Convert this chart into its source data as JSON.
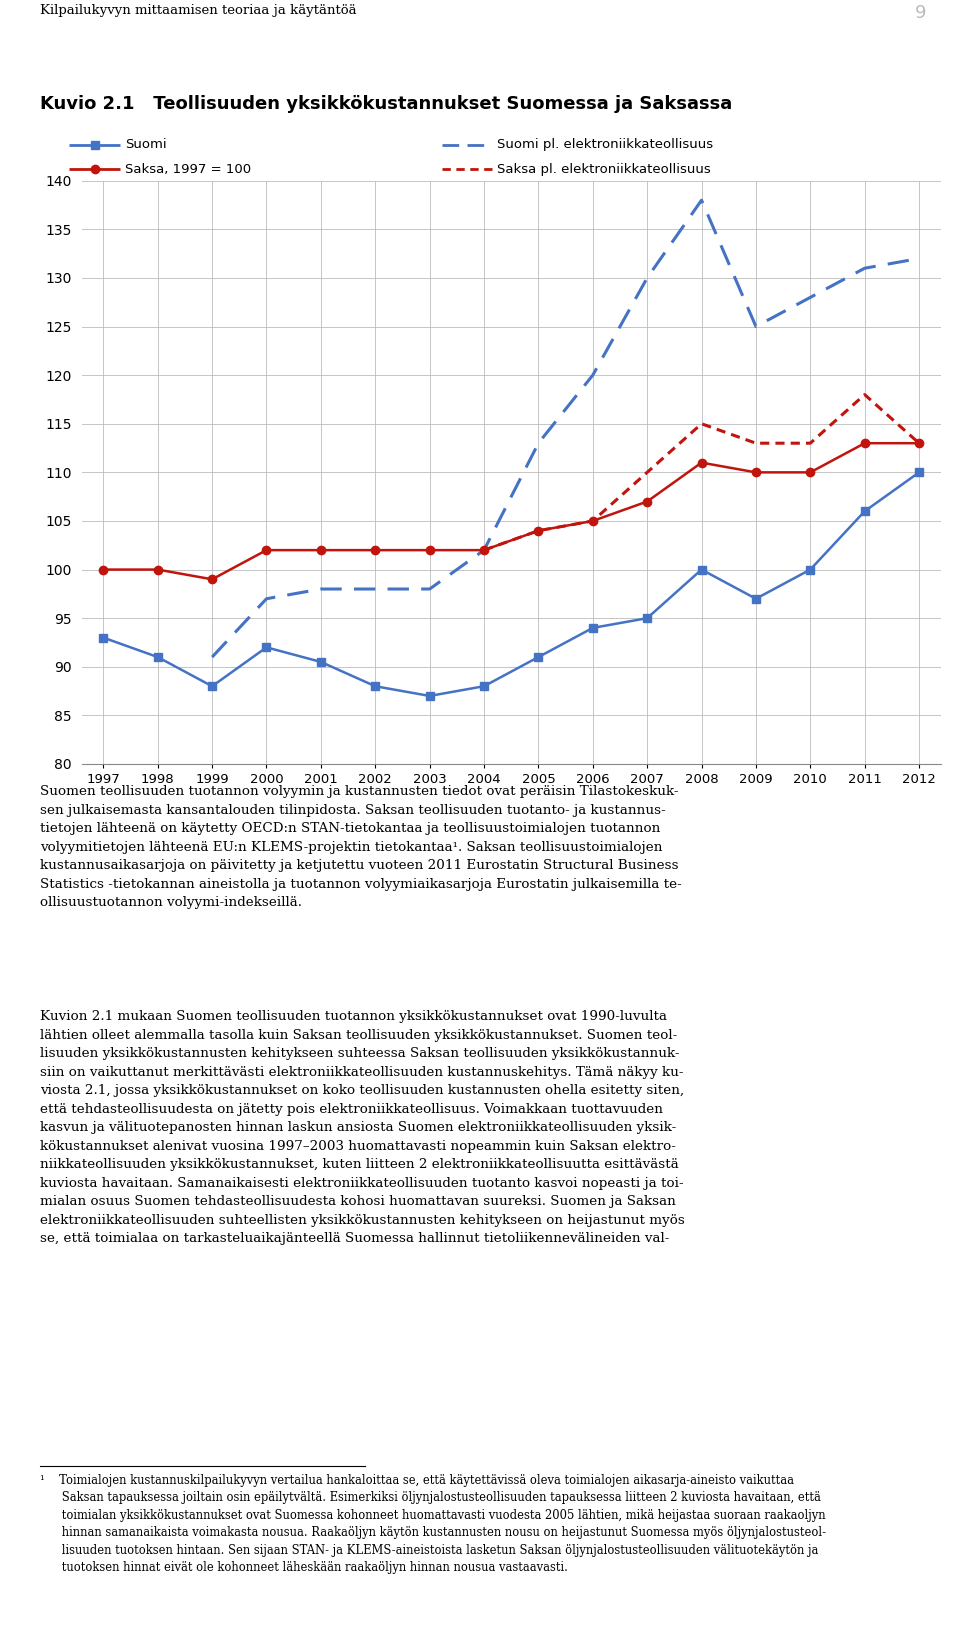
{
  "title_prefix": "Kuvio 2.1",
  "title_text": "Teollisuuden yksikkökustannukset Suomessa ja Saksassa",
  "header_text": "Kilpailukyvyn mittaamisen teoriaa ja käytäntöä",
  "page_number": "9",
  "years": [
    1997,
    1998,
    1999,
    2000,
    2001,
    2002,
    2003,
    2004,
    2005,
    2006,
    2007,
    2008,
    2009,
    2010,
    2011,
    2012
  ],
  "suomi": [
    93,
    91,
    88,
    92,
    90.5,
    88,
    87,
    88,
    91,
    94,
    95,
    100,
    97,
    100,
    106,
    110
  ],
  "saksa": [
    100,
    100,
    99,
    102,
    102,
    102,
    102,
    102,
    104,
    105,
    107,
    111,
    110,
    110,
    113,
    113
  ],
  "suomi_pl": [
    null,
    null,
    91,
    97,
    98,
    98,
    98,
    102,
    113,
    120,
    130,
    138,
    125,
    128,
    131,
    132
  ],
  "saksa_pl": [
    null,
    null,
    null,
    null,
    null,
    null,
    null,
    102,
    104,
    105,
    110,
    115,
    113,
    113,
    118,
    113
  ],
  "ylim": [
    80,
    140
  ],
  "yticks": [
    80,
    85,
    90,
    95,
    100,
    105,
    110,
    115,
    120,
    125,
    130,
    135,
    140
  ],
  "suomi_color": "#4472C4",
  "saksa_color": "#C0140C",
  "bg_color": "#ffffff"
}
